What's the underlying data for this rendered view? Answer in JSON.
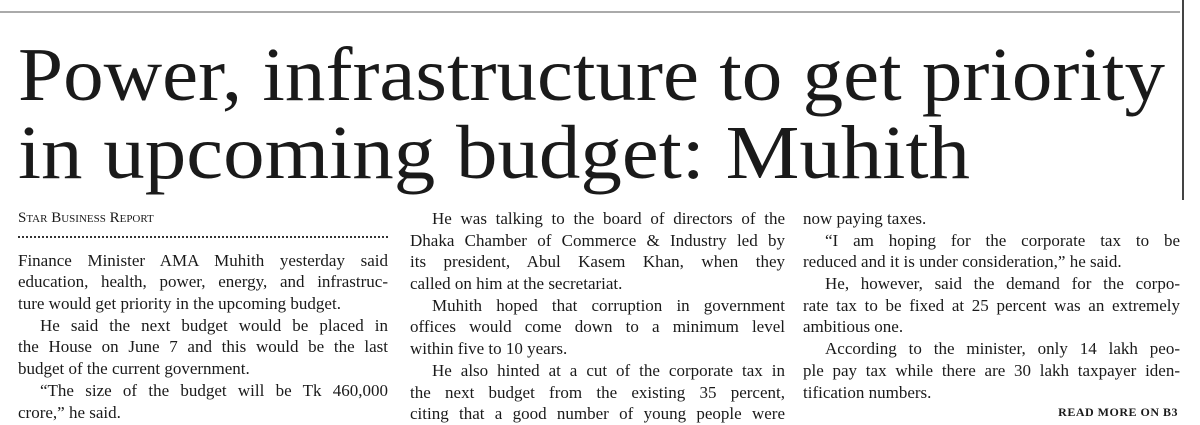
{
  "headline": [
    "Power, infrastructure to get priority",
    "in upcoming budget: Muhith"
  ],
  "byline": "Star Business Report",
  "columns": [
    [
      [
        "Finance Minister AMA Muhith yesterday said",
        "education, health, power, energy, and infrastruc-",
        "ture would get priority in the upcoming budget."
      ],
      [
        "He said the next budget would be placed in",
        "the House on June 7 and this would be the last",
        "budget of the current government."
      ],
      [
        "“The size of the budget will be Tk 460,000",
        "crore,” he said."
      ]
    ],
    [
      [
        "He was talking to the board of directors of the",
        "Dhaka Chamber of Commerce & Industry led by",
        "its president, Abul Kasem Khan, when they",
        "called on him at the secretariat."
      ],
      [
        "Muhith hoped that corruption in government",
        "offices would come down to a minimum level",
        "within five to 10 years."
      ],
      [
        "He also hinted at a cut of the corporate tax in",
        "the next budget from the existing 35 percent,",
        "citing that a good number of young people were"
      ]
    ],
    [
      [
        "now paying taxes."
      ],
      [
        "“I am hoping for the corporate tax to be",
        "reduced and it is under consideration,” he said."
      ],
      [
        "He, however, said the demand for the corpo-",
        "rate tax to be fixed at 25 percent was an extremely",
        "ambitious one."
      ],
      [
        "According to the minister, only 14 lakh peo-",
        "ple pay tax while there are 30 lakh taxpayer iden-",
        "tification numbers."
      ]
    ]
  ],
  "jump": "READ MORE ON B3"
}
